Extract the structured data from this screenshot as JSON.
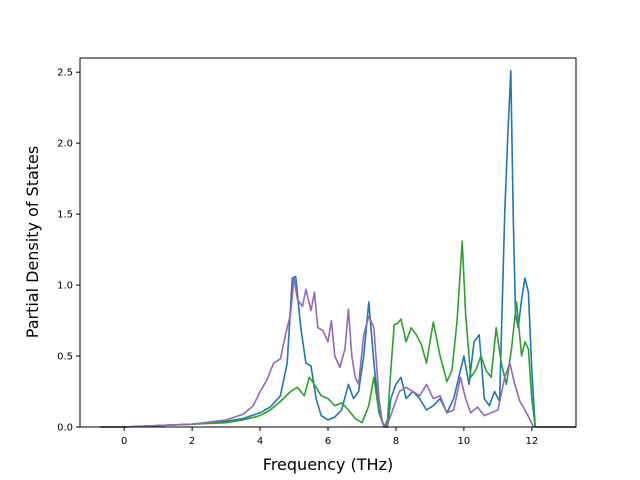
{
  "chart_data": {
    "type": "line",
    "title": "",
    "xlabel": "Frequency (THz)",
    "ylabel": "Partial Density of States",
    "xlim": [
      -1.3,
      13.3
    ],
    "ylim": [
      0.0,
      2.6
    ],
    "xticks": [
      0,
      2,
      4,
      6,
      8,
      10,
      12
    ],
    "xtick_labels": [
      "0",
      "2",
      "4",
      "6",
      "8",
      "10",
      "12"
    ],
    "yticks": [
      0.0,
      0.5,
      1.0,
      1.5,
      2.0,
      2.5
    ],
    "ytick_labels": [
      "0.0",
      "0.5",
      "1.0",
      "1.5",
      "2.0",
      "2.5"
    ],
    "grid": false,
    "legend": "none",
    "series": [
      {
        "color": "#1f77b4",
        "x": [
          -0.7,
          0,
          1,
          2,
          3,
          3.5,
          4,
          4.3,
          4.6,
          4.8,
          4.95,
          5.05,
          5.2,
          5.35,
          5.5,
          5.65,
          5.8,
          6.0,
          6.2,
          6.4,
          6.6,
          6.75,
          6.9,
          7.05,
          7.2,
          7.35,
          7.5,
          7.65,
          7.75,
          7.85,
          8.0,
          8.15,
          8.3,
          8.5,
          8.7,
          8.9,
          9.1,
          9.3,
          9.5,
          9.7,
          9.85,
          10.0,
          10.15,
          10.3,
          10.45,
          10.6,
          10.75,
          10.9,
          11.05,
          11.2,
          11.3,
          11.38,
          11.45,
          11.52,
          11.6,
          11.7,
          11.8,
          11.9,
          12.0,
          12.1,
          13.3
        ],
        "y": [
          0.0,
          0.0,
          0.01,
          0.02,
          0.04,
          0.06,
          0.1,
          0.14,
          0.22,
          0.45,
          1.05,
          1.06,
          0.7,
          0.45,
          0.43,
          0.2,
          0.08,
          0.05,
          0.07,
          0.12,
          0.3,
          0.2,
          0.25,
          0.5,
          0.88,
          0.45,
          0.12,
          0.0,
          0.0,
          0.2,
          0.3,
          0.35,
          0.2,
          0.25,
          0.2,
          0.12,
          0.15,
          0.2,
          0.1,
          0.2,
          0.35,
          0.5,
          0.3,
          0.6,
          0.65,
          0.2,
          0.15,
          0.25,
          0.18,
          1.5,
          2.1,
          2.51,
          1.5,
          0.8,
          0.7,
          0.9,
          1.05,
          0.95,
          0.4,
          0.0,
          0.0
        ]
      },
      {
        "color": "#2ca02c",
        "x": [
          -0.7,
          0,
          1,
          2,
          3,
          3.5,
          4,
          4.3,
          4.6,
          4.9,
          5.1,
          5.3,
          5.45,
          5.6,
          5.8,
          6.0,
          6.2,
          6.4,
          6.6,
          6.8,
          7.0,
          7.2,
          7.35,
          7.5,
          7.65,
          7.75,
          7.85,
          7.95,
          8.05,
          8.15,
          8.3,
          8.45,
          8.6,
          8.75,
          8.9,
          9.1,
          9.3,
          9.5,
          9.65,
          9.8,
          9.95,
          10.05,
          10.2,
          10.35,
          10.5,
          10.65,
          10.8,
          10.95,
          11.1,
          11.25,
          11.4,
          11.55,
          11.7,
          11.8,
          11.9,
          12.0,
          12.1,
          13.3
        ],
        "y": [
          0.0,
          0.0,
          0.01,
          0.02,
          0.03,
          0.05,
          0.08,
          0.12,
          0.18,
          0.25,
          0.28,
          0.22,
          0.35,
          0.3,
          0.22,
          0.2,
          0.15,
          0.17,
          0.12,
          0.06,
          0.03,
          0.15,
          0.35,
          0.1,
          0.0,
          0.05,
          0.4,
          0.72,
          0.73,
          0.76,
          0.6,
          0.7,
          0.65,
          0.58,
          0.45,
          0.74,
          0.5,
          0.32,
          0.4,
          0.75,
          1.31,
          0.8,
          0.35,
          0.4,
          0.5,
          0.4,
          0.35,
          0.7,
          0.45,
          0.3,
          0.55,
          0.88,
          0.5,
          0.6,
          0.55,
          0.2,
          0.0,
          0.0
        ]
      },
      {
        "color": "#9467bd",
        "x": [
          -0.7,
          0,
          1,
          2,
          3,
          3.5,
          3.8,
          4.0,
          4.2,
          4.4,
          4.6,
          4.75,
          4.9,
          5.0,
          5.1,
          5.25,
          5.35,
          5.5,
          5.6,
          5.7,
          5.85,
          6.0,
          6.1,
          6.2,
          6.35,
          6.5,
          6.6,
          6.7,
          6.8,
          6.9,
          7.05,
          7.2,
          7.35,
          7.5,
          7.6,
          7.7,
          7.8,
          7.95,
          8.1,
          8.3,
          8.5,
          8.7,
          8.9,
          9.1,
          9.3,
          9.5,
          9.7,
          9.9,
          10.05,
          10.2,
          10.4,
          10.6,
          10.8,
          11.0,
          11.2,
          11.35,
          11.5,
          11.65,
          11.8,
          11.95,
          12.05,
          13.3
        ],
        "y": [
          0.0,
          0.0,
          0.01,
          0.02,
          0.05,
          0.09,
          0.15,
          0.25,
          0.33,
          0.45,
          0.48,
          0.65,
          0.8,
          1.05,
          0.9,
          0.85,
          0.97,
          0.82,
          0.95,
          0.7,
          0.68,
          0.6,
          0.75,
          0.5,
          0.42,
          0.55,
          0.83,
          0.5,
          0.35,
          0.3,
          0.65,
          0.78,
          0.7,
          0.2,
          0.03,
          0.0,
          0.05,
          0.15,
          0.25,
          0.28,
          0.25,
          0.22,
          0.3,
          0.2,
          0.22,
          0.1,
          0.12,
          0.35,
          0.2,
          0.1,
          0.14,
          0.08,
          0.1,
          0.12,
          0.35,
          0.45,
          0.3,
          0.18,
          0.12,
          0.05,
          0.0,
          0.0
        ]
      }
    ]
  }
}
